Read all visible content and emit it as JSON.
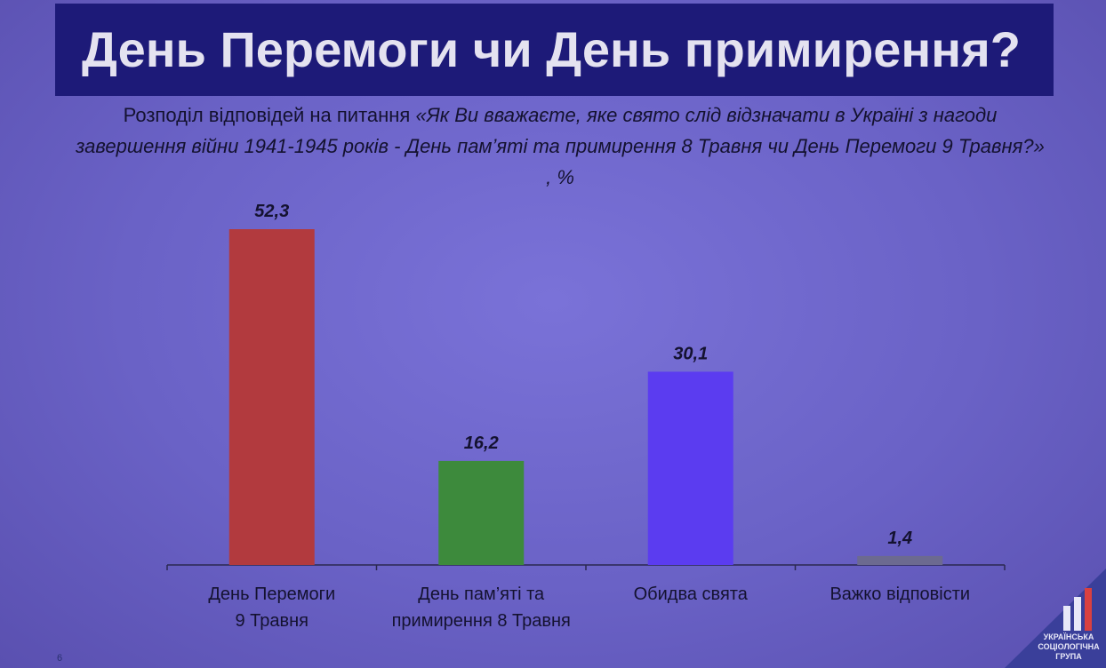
{
  "chart_data": {
    "type": "bar",
    "title": "День Перемоги чи День примирення?",
    "subtitle": "Розподіл відповідей на питання",
    "question": "«Як Ви вважаєте, яке свято слід відзначати в Україні з нагоди завершення війни 1941-1945 років - День пам’яті та примирення 8 Травня чи День Перемоги 9 Травня?» , %",
    "categories": [
      "День Перемоги\n9 Травня",
      "День пам’яті та\nпримирення 8 Травня",
      "Обидва свята",
      "Важко відповісти"
    ],
    "values": [
      52.3,
      16.2,
      30.1,
      1.4
    ],
    "value_labels": [
      "52,3",
      "16,2",
      "30,1",
      "1,4"
    ],
    "colors": [
      "#b23a3e",
      "#3d8a3c",
      "#5b3cf0",
      "#6c6a90"
    ],
    "page_number": "6",
    "logo": "УКРАЇНСЬКА\nСОЦІОЛОГІЧНА\nГРУПА"
  }
}
